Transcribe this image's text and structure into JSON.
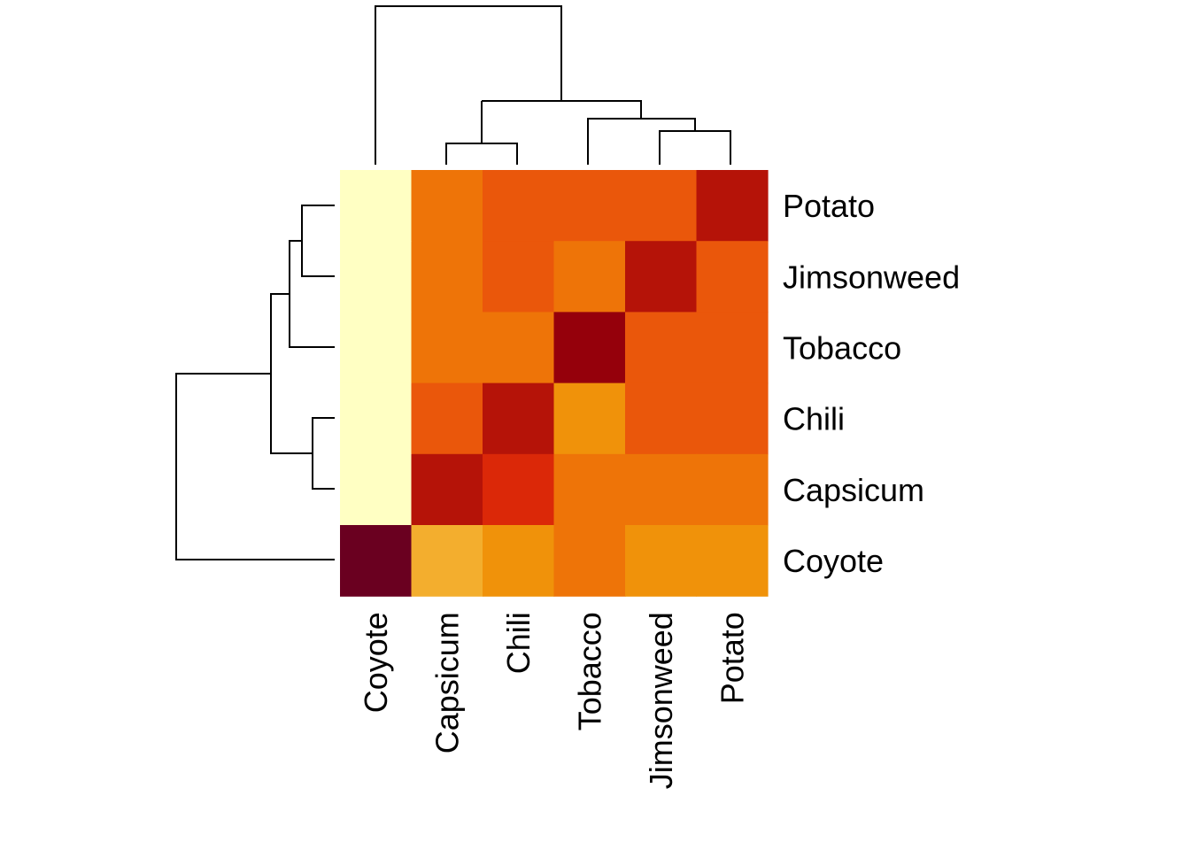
{
  "chart_data": {
    "type": "heatmap",
    "title": "",
    "xlabel": "",
    "ylabel": "",
    "col_labels": [
      "Coyote",
      "Capsicum",
      "Chili",
      "Tobacco",
      "Jimsonweed",
      "Potato"
    ],
    "row_labels": [
      "Potato",
      "Jimsonweed",
      "Tobacco",
      "Chili",
      "Capsicum",
      "Coyote"
    ],
    "values": [
      [
        0,
        4,
        5,
        5,
        5,
        8
      ],
      [
        0,
        4,
        5,
        4,
        8,
        5
      ],
      [
        0,
        4,
        4,
        9,
        5,
        6
      ],
      [
        0,
        6,
        8,
        3,
        5,
        5
      ],
      [
        0,
        8,
        7,
        4,
        4,
        4
      ],
      [
        10,
        2,
        3,
        4,
        3,
        3
      ]
    ],
    "value_range": [
      0,
      10
    ],
    "palette": [
      "#FFFFC3",
      "#F5C761",
      "#F3AE2E",
      "#F0920A",
      "#EE7408",
      "#EA570B",
      "#DB2808",
      "#B51308",
      "#95000B",
      "#6A0020"
    ],
    "dendrogram": {
      "columns_top": true,
      "rows_left": true
    }
  }
}
